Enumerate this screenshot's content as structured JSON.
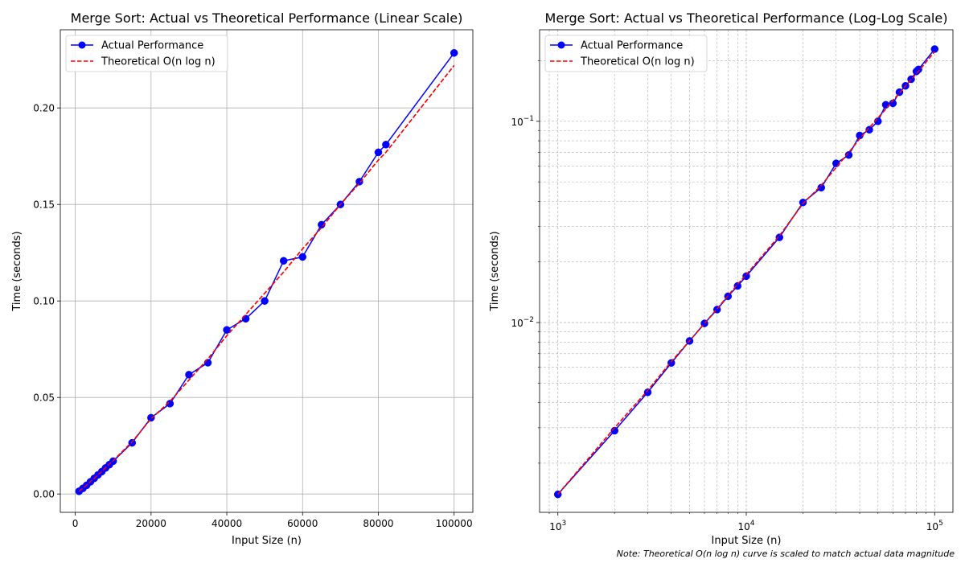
{
  "chart_data": [
    {
      "type": "line",
      "title": "Merge Sort: Actual vs Theoretical Performance (Linear Scale)",
      "xlabel": "Input Size (n)",
      "ylabel": "Time (seconds)",
      "x_scale": "linear",
      "y_scale": "linear",
      "xlim": [
        -3950,
        104950
      ],
      "ylim": [
        -0.0095,
        0.2405
      ],
      "x_ticks": [
        0,
        20000,
        40000,
        60000,
        80000,
        100000
      ],
      "x_tick_labels": [
        "0",
        "20000",
        "40000",
        "60000",
        "80000",
        "100000"
      ],
      "y_ticks": [
        0.0,
        0.05,
        0.1,
        0.15,
        0.2
      ],
      "y_tick_labels": [
        "0.00",
        "0.05",
        "0.10",
        "0.15",
        "0.20"
      ],
      "grid": "major",
      "legend": "top-left",
      "series": [
        {
          "name": "Actual Performance",
          "style": "solid-marker",
          "color": "#0000ff",
          "marker_color": "#0000ff",
          "x": [
            1000,
            2000,
            3000,
            4000,
            5000,
            6000,
            7000,
            8000,
            9000,
            10000,
            15000,
            20000,
            25000,
            30000,
            35000,
            40000,
            45000,
            50000,
            55000,
            60000,
            65000,
            70000,
            75000,
            80000,
            82000,
            100000
          ],
          "y": [
            0.0014,
            0.0029,
            0.0045,
            0.0063,
            0.0081,
            0.0099,
            0.0116,
            0.0135,
            0.0152,
            0.017,
            0.0265,
            0.0395,
            0.0468,
            0.0618,
            0.068,
            0.085,
            0.0908,
            0.1,
            0.1208,
            0.1228,
            0.1395,
            0.15,
            0.1618,
            0.177,
            0.181,
            0.2285
          ]
        },
        {
          "name": "Theoretical O(n log n)",
          "style": "dashed",
          "color": "#ff0000",
          "x": [
            1000,
            2000,
            3000,
            4000,
            5000,
            6000,
            7000,
            8000,
            9000,
            10000,
            15000,
            20000,
            25000,
            30000,
            35000,
            40000,
            45000,
            50000,
            55000,
            60000,
            65000,
            70000,
            75000,
            80000,
            82000,
            100000
          ],
          "y": [
            0.0014,
            0.003,
            0.0046,
            0.0064,
            0.0081,
            0.0099,
            0.0117,
            0.0136,
            0.0155,
            0.0173,
            0.027,
            0.039,
            0.048,
            0.059,
            0.07,
            0.082,
            0.093,
            0.104,
            0.115,
            0.127,
            0.138,
            0.15,
            0.161,
            0.173,
            0.177,
            0.222
          ]
        }
      ]
    },
    {
      "type": "line",
      "title": "Merge Sort: Actual vs Theoretical Performance (Log-Log Scale)",
      "xlabel": "Input Size (n)",
      "ylabel": "Time (seconds)",
      "x_scale": "log",
      "y_scale": "log",
      "xlim": [
        800,
        125000
      ],
      "ylim": [
        0.00114,
        0.285
      ],
      "x_ticks": [
        1000,
        10000,
        100000
      ],
      "x_tick_labels": [
        "10^3",
        "10^4",
        "10^5"
      ],
      "y_ticks": [
        0.01,
        0.1
      ],
      "y_tick_labels": [
        "10^-2",
        "10^-1"
      ],
      "grid": "major-and-minor",
      "legend": "top-left",
      "series": [
        {
          "name": "Actual Performance",
          "style": "solid-marker",
          "color": "#0000ff",
          "marker_color": "#0000ff",
          "x": [
            1000,
            2000,
            3000,
            4000,
            5000,
            6000,
            7000,
            8000,
            9000,
            10000,
            15000,
            20000,
            25000,
            30000,
            35000,
            40000,
            45000,
            50000,
            55000,
            60000,
            65000,
            70000,
            75000,
            80000,
            82000,
            100000
          ],
          "y": [
            0.0014,
            0.0029,
            0.0045,
            0.0063,
            0.0081,
            0.0099,
            0.0116,
            0.0135,
            0.0152,
            0.017,
            0.0265,
            0.0395,
            0.0468,
            0.0618,
            0.068,
            0.085,
            0.0908,
            0.1,
            0.1208,
            0.1228,
            0.1395,
            0.15,
            0.1618,
            0.177,
            0.181,
            0.2285
          ]
        },
        {
          "name": "Theoretical O(n log n)",
          "style": "dashed",
          "color": "#ff0000",
          "x": [
            1000,
            2000,
            3000,
            4000,
            5000,
            6000,
            7000,
            8000,
            9000,
            10000,
            15000,
            20000,
            25000,
            30000,
            35000,
            40000,
            45000,
            50000,
            55000,
            60000,
            65000,
            70000,
            75000,
            80000,
            82000,
            100000
          ],
          "y": [
            0.0014,
            0.003,
            0.0046,
            0.0064,
            0.0081,
            0.0099,
            0.0117,
            0.0136,
            0.0155,
            0.0173,
            0.027,
            0.039,
            0.048,
            0.059,
            0.07,
            0.082,
            0.093,
            0.104,
            0.115,
            0.127,
            0.138,
            0.15,
            0.161,
            0.173,
            0.177,
            0.222
          ]
        }
      ]
    }
  ],
  "note": "Note: Theoretical O(n log n) curve is scaled to match actual data magnitude"
}
